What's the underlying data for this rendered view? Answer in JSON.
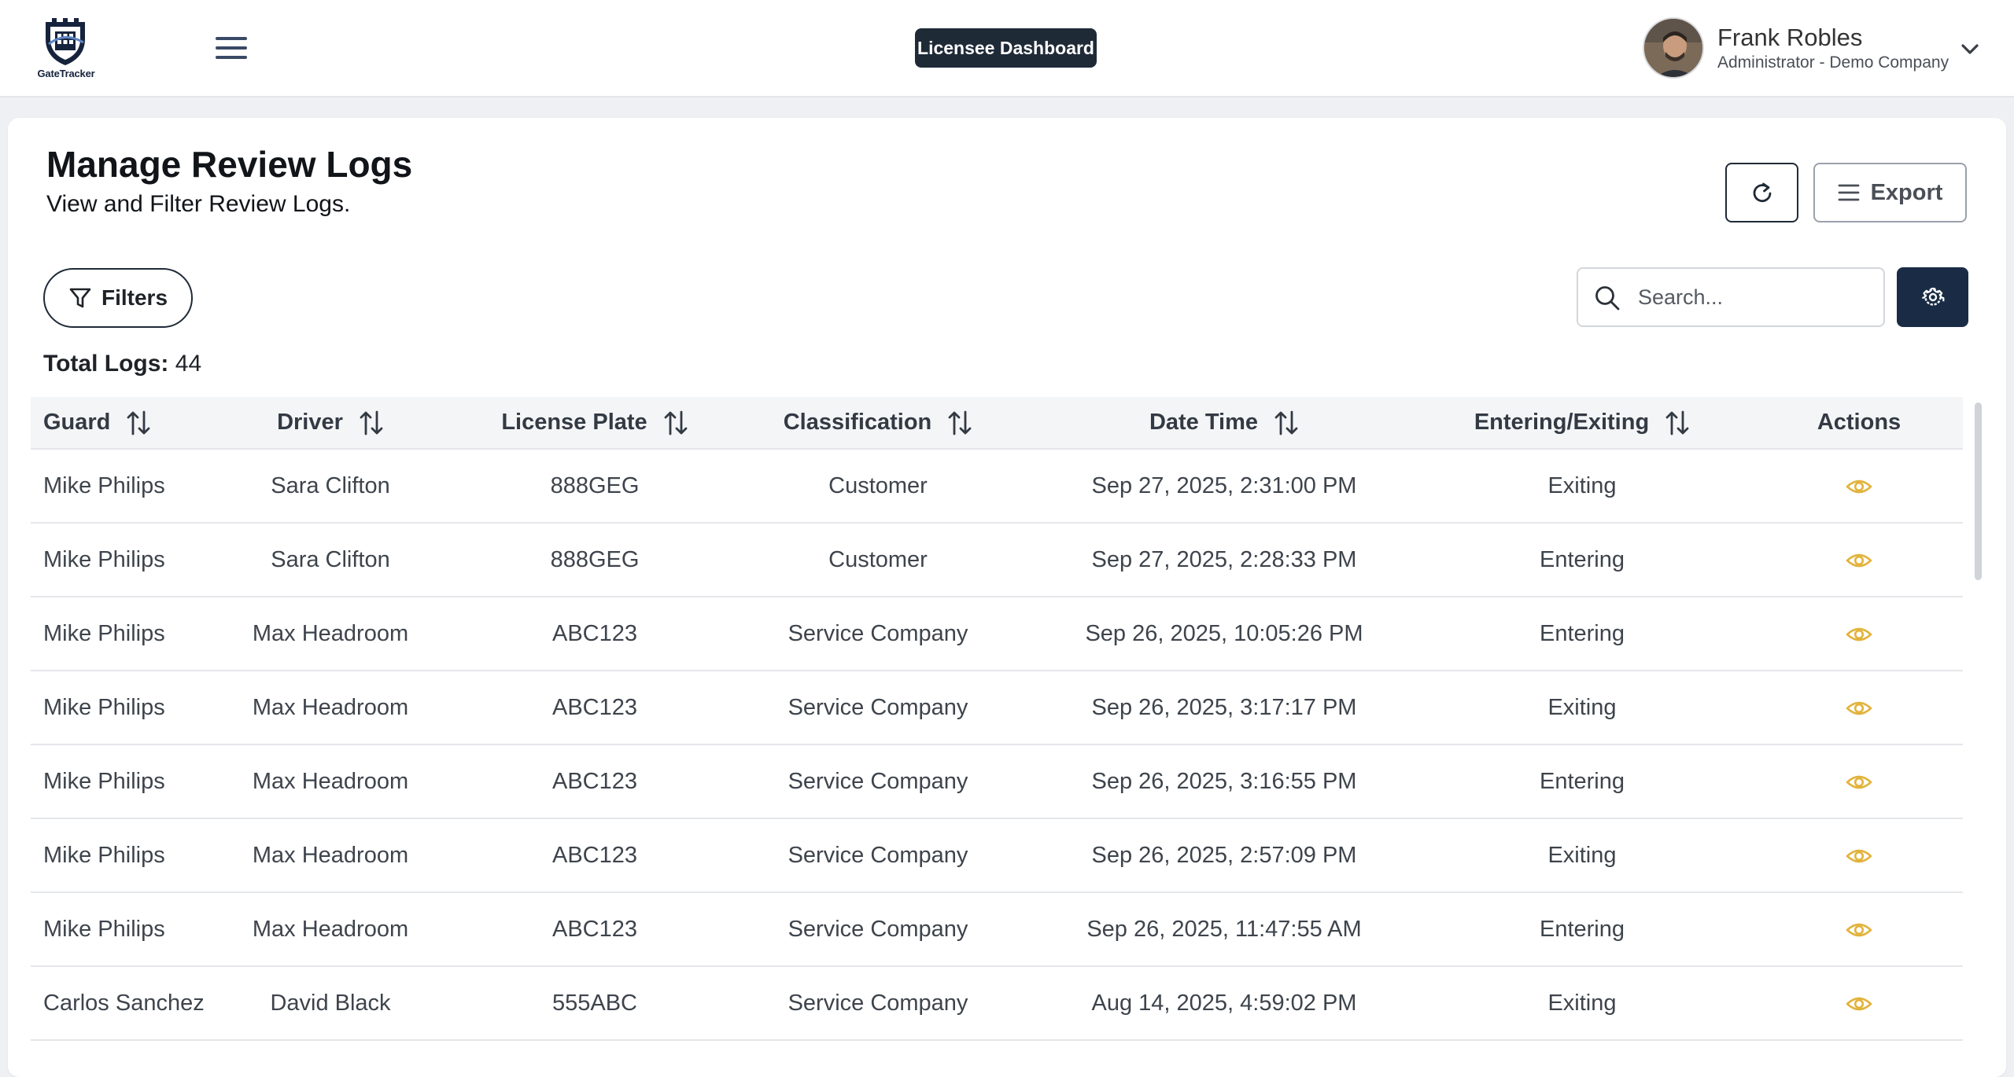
{
  "header": {
    "logo_text": "GateTracker",
    "dashboard_badge": "Licensee Dashboard",
    "user": {
      "name": "Frank Robles",
      "role": "Administrator - Demo Company"
    }
  },
  "page": {
    "title": "Manage Review Logs",
    "subtitle": "View and Filter Review Logs.",
    "export_label": "Export",
    "filters_label": "Filters",
    "search_placeholder": "Search...",
    "total_logs_label": "Total Logs:",
    "total_logs_value": "44"
  },
  "table": {
    "columns": [
      "Guard",
      "Driver",
      "License Plate",
      "Classification",
      "Date Time",
      "Entering/Exiting",
      "Actions"
    ],
    "rows": [
      [
        "Mike Philips",
        "Sara Clifton",
        "888GEG",
        "Customer",
        "Sep 27, 2025, 2:31:00 PM",
        "Exiting"
      ],
      [
        "Mike Philips",
        "Sara Clifton",
        "888GEG",
        "Customer",
        "Sep 27, 2025, 2:28:33 PM",
        "Entering"
      ],
      [
        "Mike Philips",
        "Max Headroom",
        "ABC123",
        "Service Company",
        "Sep 26, 2025, 10:05:26 PM",
        "Entering"
      ],
      [
        "Mike Philips",
        "Max Headroom",
        "ABC123",
        "Service Company",
        "Sep 26, 2025, 3:17:17 PM",
        "Exiting"
      ],
      [
        "Mike Philips",
        "Max Headroom",
        "ABC123",
        "Service Company",
        "Sep 26, 2025, 3:16:55 PM",
        "Entering"
      ],
      [
        "Mike Philips",
        "Max Headroom",
        "ABC123",
        "Service Company",
        "Sep 26, 2025, 2:57:09 PM",
        "Exiting"
      ],
      [
        "Mike Philips",
        "Max Headroom",
        "ABC123",
        "Service Company",
        "Sep 26, 2025, 11:47:55 AM",
        "Entering"
      ],
      [
        "Carlos Sanchez",
        "David Black",
        "555ABC",
        "Service Company",
        "Aug 14, 2025, 4:59:02 PM",
        "Exiting"
      ]
    ]
  },
  "icons": {
    "menu": "hamburger-menu-icon",
    "chevron": "chevron-down-icon",
    "refresh": "refresh-icon",
    "export": "list-icon",
    "filter": "funnel-icon",
    "search": "search-icon",
    "settings": "gear-icon",
    "sort": "sort-arrows-icon",
    "view": "eye-icon"
  },
  "colors": {
    "navy": "#1a2c45",
    "badge": "#1f2a37",
    "eye_icon": "#e2b33c"
  }
}
